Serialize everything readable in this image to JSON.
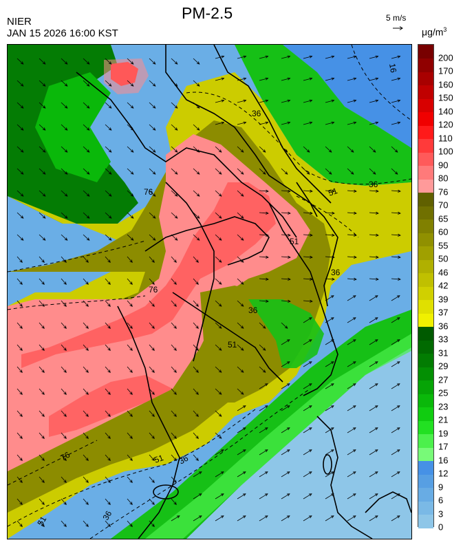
{
  "header": {
    "organization": "NIER",
    "datetime": "JAN 15 2026 16:00 KST",
    "title": "PM-2.5",
    "wind_reference": "5 m/s",
    "unit_prefix": "μg/m",
    "unit_exponent": "3"
  },
  "legend": {
    "levels": [
      {
        "label": "0",
        "color": "#8ec6e8"
      },
      {
        "label": "3",
        "color": "#7ab9e6"
      },
      {
        "label": "6",
        "color": "#68ace4"
      },
      {
        "label": "9",
        "color": "#579fe3"
      },
      {
        "label": "12",
        "color": "#4691e6"
      },
      {
        "label": "16",
        "color": "#78fa78"
      },
      {
        "label": "17",
        "color": "#4cf04c"
      },
      {
        "label": "19",
        "color": "#22e022"
      },
      {
        "label": "21",
        "color": "#10cc10"
      },
      {
        "label": "23",
        "color": "#0ab80a"
      },
      {
        "label": "25",
        "color": "#06a406"
      },
      {
        "label": "27",
        "color": "#038f03"
      },
      {
        "label": "29",
        "color": "#027c02"
      },
      {
        "label": "31",
        "color": "#016a01"
      },
      {
        "label": "33",
        "color": "#005a00"
      },
      {
        "label": "36",
        "color": "#f0f000"
      },
      {
        "label": "37",
        "color": "#e0e000"
      },
      {
        "label": "39",
        "color": "#d0d000"
      },
      {
        "label": "42",
        "color": "#c0c000"
      },
      {
        "label": "46",
        "color": "#b0b000"
      },
      {
        "label": "50",
        "color": "#a0a000"
      },
      {
        "label": "55",
        "color": "#909000"
      },
      {
        "label": "60",
        "color": "#808000"
      },
      {
        "label": "65",
        "color": "#707000"
      },
      {
        "label": "70",
        "color": "#606000"
      },
      {
        "label": "76",
        "color": "#ff9a9a"
      },
      {
        "label": "80",
        "color": "#ff7a7a"
      },
      {
        "label": "90",
        "color": "#ff5a5a"
      },
      {
        "label": "100",
        "color": "#ff3a3a"
      },
      {
        "label": "110",
        "color": "#ff1a1a"
      },
      {
        "label": "120",
        "color": "#f00000"
      },
      {
        "label": "140",
        "color": "#d80000"
      },
      {
        "label": "150",
        "color": "#c00000"
      },
      {
        "label": "160",
        "color": "#a80000"
      },
      {
        "label": "170",
        "color": "#900000"
      },
      {
        "label": "200",
        "color": "#780000"
      }
    ]
  },
  "map": {
    "contour_labels": [
      "16",
      "36",
      "51",
      "76"
    ],
    "colors": {
      "ocean_blue": "#6aaee6",
      "green": "#16c016",
      "dark_green": "#047c04",
      "yellow": "#cccc00",
      "olive": "#8c8c00",
      "pink": "#ff8c8c",
      "red": "#ff4a4a",
      "boundary": "#000000"
    }
  }
}
